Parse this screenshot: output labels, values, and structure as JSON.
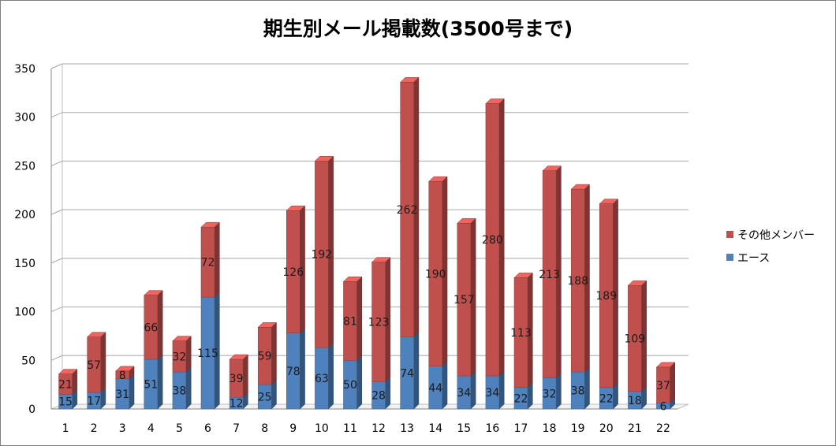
{
  "chart_data": {
    "type": "bar",
    "stacked": true,
    "title": "期生別メール掲載数(3500号まで)",
    "xlabel": "",
    "ylabel": "",
    "categories": [
      "1",
      "2",
      "3",
      "4",
      "5",
      "6",
      "7",
      "8",
      "9",
      "10",
      "11",
      "12",
      "13",
      "14",
      "15",
      "16",
      "17",
      "18",
      "19",
      "20",
      "21",
      "22"
    ],
    "series": [
      {
        "name": "エース",
        "color": "#4f81bd",
        "values": [
          15,
          17,
          31,
          51,
          38,
          115,
          12,
          25,
          78,
          63,
          50,
          28,
          74,
          44,
          34,
          34,
          22,
          32,
          38,
          22,
          18,
          6
        ]
      },
      {
        "name": "その他メンバー",
        "color": "#c0504d",
        "values": [
          21,
          57,
          8,
          66,
          32,
          72,
          39,
          59,
          126,
          192,
          81,
          123,
          262,
          190,
          157,
          280,
          113,
          213,
          188,
          189,
          109,
          37
        ]
      }
    ],
    "ylim": [
      0,
      350
    ],
    "yticks": [
      0,
      50,
      100,
      150,
      200,
      250,
      300,
      350
    ],
    "grid": true,
    "legend_position": "right"
  }
}
